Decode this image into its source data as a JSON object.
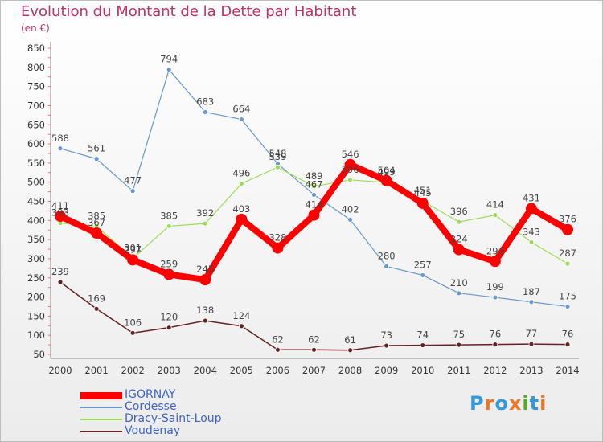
{
  "chart_data": {
    "type": "line",
    "title": "Evolution du Montant de la Dette par Habitant",
    "subtitle": "(en €)",
    "xlabel": "",
    "ylabel": "",
    "x": [
      "2000",
      "2001",
      "2002",
      "2003",
      "2004",
      "2005",
      "2006",
      "2007",
      "2008",
      "2009",
      "2010",
      "2011",
      "2012",
      "2013",
      "2014"
    ],
    "ylim": [
      50,
      850
    ],
    "yticks": [
      "50",
      "100",
      "150",
      "200",
      "250",
      "300",
      "350",
      "400",
      "450",
      "500",
      "550",
      "600",
      "650",
      "700",
      "750",
      "800",
      "850"
    ],
    "grid": false,
    "legend_position": "bottom-left",
    "series": [
      {
        "name": "IGORNAY",
        "color": "#ff0000",
        "values": [
          411,
          367,
          297,
          259,
          245,
          403,
          328,
          414,
          546,
          504,
          445,
          324,
          293,
          431,
          376
        ]
      },
      {
        "name": "Cordesse",
        "color": "#6699cc",
        "values": [
          588,
          561,
          477,
          794,
          683,
          664,
          548,
          467,
          402,
          280,
          257,
          210,
          199,
          187,
          175
        ]
      },
      {
        "name": "Dracy-Saint-Loup",
        "color": "#99dd55",
        "values": [
          393,
          385,
          301,
          385,
          392,
          496,
          539,
          489,
          506,
          499,
          451,
          396,
          414,
          343,
          287
        ]
      },
      {
        "name": "Voudenay",
        "color": "#662222",
        "values": [
          239,
          169,
          106,
          120,
          138,
          124,
          62,
          62,
          61,
          73,
          74,
          75,
          76,
          77,
          76
        ]
      }
    ]
  },
  "logo": {
    "text": "Proxiti"
  }
}
